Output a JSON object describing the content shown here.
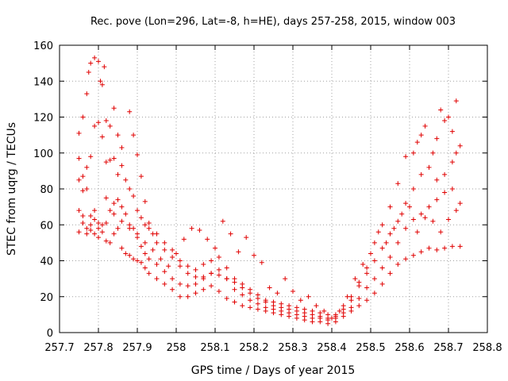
{
  "chart_data": {
    "type": "scatter",
    "title": "Rec. pove (Lon=296, Lat=-8, h=HE), days 257-258, 2015, window 003",
    "xlabel": "GPS time / Days of year 2015",
    "ylabel": "STEC from uqrg / TECUs",
    "xlim": [
      257.7,
      258.8
    ],
    "ylim": [
      0,
      160
    ],
    "x_ticks": [
      "257.7",
      "257.8",
      "257.9",
      "258",
      "258.1",
      "258.2",
      "258.3",
      "258.4",
      "258.5",
      "258.6",
      "258.7",
      "258.8"
    ],
    "y_ticks": [
      "0",
      "20",
      "40",
      "60",
      "80",
      "100",
      "120",
      "140",
      "160"
    ],
    "grid": true,
    "marker": "plus",
    "color": "#e00000",
    "series": [
      {
        "values": [
          [
            257.75,
            111
          ],
          [
            257.76,
            120
          ],
          [
            257.77,
            133
          ],
          [
            257.775,
            145
          ],
          [
            257.78,
            150
          ],
          [
            257.79,
            153
          ],
          [
            257.8,
            151
          ],
          [
            257.805,
            140
          ],
          [
            257.81,
            138
          ],
          [
            257.815,
            148
          ],
          [
            257.82,
            118
          ],
          [
            257.83,
            115
          ],
          [
            257.84,
            125
          ],
          [
            257.85,
            110
          ],
          [
            257.86,
            103
          ],
          [
            257.88,
            123
          ],
          [
            257.89,
            110
          ],
          [
            257.9,
            99
          ],
          [
            257.91,
            87
          ],
          [
            257.92,
            73
          ],
          [
            257.93,
            61
          ],
          [
            257.94,
            55
          ],
          [
            257.95,
            50
          ],
          [
            257.97,
            46
          ],
          [
            257.99,
            42
          ],
          [
            258.01,
            37
          ],
          [
            258.03,
            33
          ],
          [
            258.05,
            31
          ],
          [
            258.07,
            31
          ],
          [
            258.09,
            33
          ],
          [
            258.11,
            32
          ],
          [
            258.13,
            30
          ],
          [
            258.15,
            28
          ],
          [
            258.17,
            25
          ],
          [
            258.19,
            22
          ],
          [
            258.21,
            19
          ],
          [
            258.23,
            17
          ],
          [
            258.25,
            15
          ],
          [
            258.27,
            14
          ],
          [
            258.29,
            13
          ],
          [
            258.31,
            12
          ],
          [
            258.33,
            11
          ],
          [
            258.35,
            10
          ],
          [
            258.37,
            9
          ],
          [
            258.39,
            8
          ],
          [
            258.41,
            9
          ],
          [
            258.43,
            13
          ],
          [
            258.45,
            18
          ],
          [
            258.47,
            26
          ],
          [
            258.49,
            36
          ],
          [
            258.51,
            50
          ],
          [
            258.53,
            60
          ],
          [
            258.55,
            70
          ],
          [
            258.57,
            83
          ],
          [
            258.59,
            98
          ],
          [
            258.61,
            100
          ],
          [
            258.62,
            106
          ],
          [
            258.63,
            110
          ],
          [
            258.64,
            115
          ],
          [
            258.66,
            100
          ],
          [
            258.67,
            108
          ],
          [
            258.68,
            124
          ],
          [
            258.69,
            118
          ],
          [
            258.7,
            120
          ],
          [
            258.71,
            112
          ],
          [
            258.72,
            129
          ]
        ]
      },
      {
        "values": [
          [
            257.75,
            97
          ],
          [
            257.76,
            87
          ],
          [
            257.77,
            92
          ],
          [
            257.78,
            98
          ],
          [
            257.79,
            115
          ],
          [
            257.8,
            117
          ],
          [
            257.81,
            109
          ],
          [
            257.82,
            95
          ],
          [
            257.83,
            96
          ],
          [
            257.84,
            97
          ],
          [
            257.85,
            88
          ],
          [
            257.86,
            93
          ],
          [
            257.87,
            85
          ],
          [
            257.88,
            80
          ],
          [
            257.89,
            76
          ],
          [
            257.9,
            68
          ],
          [
            257.91,
            64
          ],
          [
            257.92,
            60
          ],
          [
            257.93,
            58
          ],
          [
            257.95,
            55
          ],
          [
            257.97,
            50
          ],
          [
            257.99,
            46
          ],
          [
            258.01,
            40
          ],
          [
            258.03,
            37
          ],
          [
            258.05,
            35
          ],
          [
            258.07,
            38
          ],
          [
            258.09,
            40
          ],
          [
            258.11,
            42
          ],
          [
            258.13,
            36
          ],
          [
            258.15,
            30
          ],
          [
            258.17,
            27
          ],
          [
            258.19,
            24
          ],
          [
            258.21,
            21
          ],
          [
            258.23,
            18
          ],
          [
            258.25,
            17
          ],
          [
            258.27,
            16
          ],
          [
            258.29,
            15
          ],
          [
            258.31,
            14
          ],
          [
            258.33,
            13
          ],
          [
            258.35,
            12
          ],
          [
            258.37,
            11
          ],
          [
            258.39,
            10
          ],
          [
            258.41,
            10
          ],
          [
            258.43,
            15
          ],
          [
            258.45,
            20
          ],
          [
            258.47,
            28
          ],
          [
            258.49,
            33
          ],
          [
            258.51,
            40
          ],
          [
            258.53,
            47
          ],
          [
            258.55,
            55
          ],
          [
            258.57,
            62
          ],
          [
            258.59,
            72
          ],
          [
            258.61,
            80
          ],
          [
            258.63,
            88
          ],
          [
            258.65,
            92
          ],
          [
            258.67,
            85
          ],
          [
            258.69,
            88
          ],
          [
            258.71,
            95
          ],
          [
            258.72,
            100
          ],
          [
            258.73,
            104
          ]
        ]
      },
      {
        "values": [
          [
            257.75,
            85
          ],
          [
            257.76,
            79
          ],
          [
            257.77,
            80
          ],
          [
            257.78,
            65
          ],
          [
            257.79,
            68
          ],
          [
            257.8,
            61
          ],
          [
            257.81,
            60
          ],
          [
            257.82,
            75
          ],
          [
            257.83,
            68
          ],
          [
            257.84,
            72
          ],
          [
            257.85,
            74
          ],
          [
            257.86,
            70
          ],
          [
            257.87,
            66
          ],
          [
            257.88,
            60
          ],
          [
            257.89,
            58
          ],
          [
            257.9,
            53
          ],
          [
            257.91,
            48
          ],
          [
            257.92,
            44
          ],
          [
            257.93,
            41
          ],
          [
            257.95,
            38
          ],
          [
            257.97,
            34
          ],
          [
            257.99,
            30
          ],
          [
            258.01,
            27
          ],
          [
            258.03,
            26
          ],
          [
            258.05,
            27
          ],
          [
            258.07,
            30
          ],
          [
            258.09,
            33
          ],
          [
            258.11,
            35
          ],
          [
            258.13,
            30
          ],
          [
            258.15,
            24
          ],
          [
            258.17,
            21
          ],
          [
            258.19,
            18
          ],
          [
            258.21,
            16
          ],
          [
            258.23,
            14
          ],
          [
            258.25,
            13
          ],
          [
            258.27,
            12
          ],
          [
            258.29,
            11
          ],
          [
            258.31,
            10
          ],
          [
            258.33,
            9
          ],
          [
            258.35,
            8
          ],
          [
            258.37,
            8
          ],
          [
            258.39,
            7
          ],
          [
            258.41,
            8
          ],
          [
            258.43,
            11
          ],
          [
            258.45,
            14
          ],
          [
            258.47,
            19
          ],
          [
            258.49,
            25
          ],
          [
            258.51,
            30
          ],
          [
            258.53,
            36
          ],
          [
            258.55,
            42
          ],
          [
            258.57,
            50
          ],
          [
            258.59,
            58
          ],
          [
            258.61,
            63
          ],
          [
            258.63,
            66
          ],
          [
            258.65,
            70
          ],
          [
            258.67,
            74
          ],
          [
            258.69,
            78
          ],
          [
            258.71,
            80
          ],
          [
            258.73,
            72
          ]
        ]
      },
      {
        "values": [
          [
            257.75,
            68
          ],
          [
            257.76,
            65
          ],
          [
            257.77,
            58
          ],
          [
            257.78,
            57
          ],
          [
            257.79,
            55
          ],
          [
            257.8,
            53
          ],
          [
            257.81,
            56
          ],
          [
            257.82,
            51
          ],
          [
            257.83,
            50
          ],
          [
            257.84,
            55
          ],
          [
            257.85,
            58
          ],
          [
            257.86,
            47
          ],
          [
            257.87,
            44
          ],
          [
            257.88,
            43
          ],
          [
            257.89,
            41
          ],
          [
            257.9,
            40
          ],
          [
            257.91,
            39
          ],
          [
            257.92,
            36
          ],
          [
            257.93,
            33
          ],
          [
            257.95,
            30
          ],
          [
            257.97,
            27
          ],
          [
            257.99,
            24
          ],
          [
            258.01,
            20
          ],
          [
            258.03,
            20
          ],
          [
            258.05,
            22
          ],
          [
            258.07,
            24
          ],
          [
            258.09,
            26
          ],
          [
            258.11,
            23
          ],
          [
            258.13,
            19
          ],
          [
            258.15,
            17
          ],
          [
            258.17,
            15
          ],
          [
            258.19,
            14
          ],
          [
            258.21,
            13
          ],
          [
            258.23,
            12
          ],
          [
            258.25,
            11
          ],
          [
            258.27,
            10
          ],
          [
            258.29,
            9
          ],
          [
            258.31,
            8
          ],
          [
            258.33,
            7
          ],
          [
            258.35,
            6
          ],
          [
            258.37,
            6
          ],
          [
            258.39,
            5
          ],
          [
            258.41,
            6
          ],
          [
            258.43,
            9
          ],
          [
            258.45,
            12
          ],
          [
            258.47,
            15
          ],
          [
            258.49,
            18
          ],
          [
            258.51,
            22
          ],
          [
            258.53,
            27
          ],
          [
            258.55,
            33
          ],
          [
            258.57,
            38
          ],
          [
            258.59,
            41
          ],
          [
            258.61,
            43
          ],
          [
            258.63,
            45
          ],
          [
            258.65,
            47
          ],
          [
            258.67,
            46
          ],
          [
            258.69,
            47
          ],
          [
            258.71,
            48
          ],
          [
            258.73,
            48
          ]
        ]
      },
      {
        "values": [
          [
            257.75,
            56
          ],
          [
            257.76,
            61
          ],
          [
            257.77,
            55
          ],
          [
            257.78,
            60
          ],
          [
            257.79,
            63
          ],
          [
            257.8,
            58
          ],
          [
            257.82,
            61
          ],
          [
            257.84,
            66
          ],
          [
            257.86,
            62
          ],
          [
            257.88,
            58
          ],
          [
            257.9,
            55
          ],
          [
            257.92,
            50
          ],
          [
            257.94,
            46
          ],
          [
            257.96,
            41
          ],
          [
            257.98,
            37
          ],
          [
            258.0,
            44
          ],
          [
            258.02,
            52
          ],
          [
            258.04,
            58
          ],
          [
            258.06,
            57
          ],
          [
            258.08,
            52
          ],
          [
            258.1,
            47
          ],
          [
            258.12,
            62
          ],
          [
            258.14,
            55
          ],
          [
            258.16,
            45
          ],
          [
            258.18,
            53
          ],
          [
            258.2,
            43
          ],
          [
            258.22,
            39
          ],
          [
            258.24,
            25
          ],
          [
            258.26,
            22
          ],
          [
            258.28,
            30
          ],
          [
            258.3,
            23
          ],
          [
            258.32,
            18
          ],
          [
            258.34,
            20
          ],
          [
            258.36,
            15
          ],
          [
            258.38,
            12
          ],
          [
            258.4,
            8
          ],
          [
            258.42,
            12
          ],
          [
            258.44,
            20
          ],
          [
            258.46,
            30
          ],
          [
            258.48,
            38
          ],
          [
            258.5,
            44
          ],
          [
            258.52,
            56
          ],
          [
            258.54,
            50
          ],
          [
            258.56,
            58
          ],
          [
            258.58,
            66
          ],
          [
            258.6,
            70
          ],
          [
            258.62,
            56
          ],
          [
            258.64,
            64
          ],
          [
            258.66,
            62
          ],
          [
            258.68,
            56
          ],
          [
            258.7,
            63
          ],
          [
            258.72,
            68
          ]
        ]
      }
    ]
  }
}
